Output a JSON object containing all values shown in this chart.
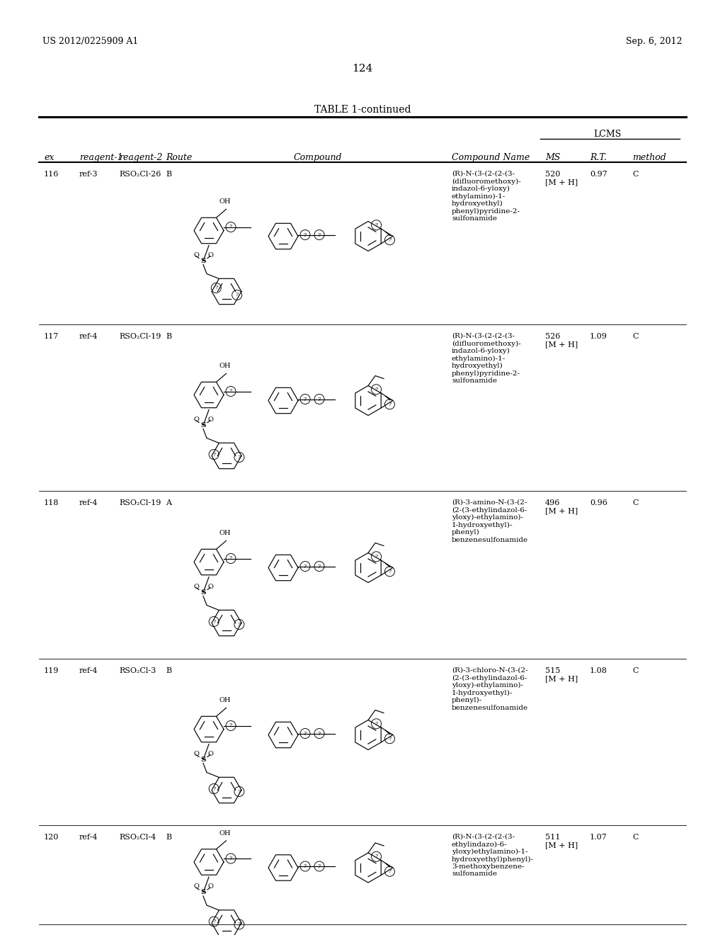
{
  "page_header_left": "US 2012/0225909 A1",
  "page_header_right": "Sep. 6, 2012",
  "page_number": "124",
  "table_title": "TABLE 1-continued",
  "lcms_header": "LCMS",
  "col_headers": [
    "ex",
    "reagent-1",
    "reagent-2",
    "Route",
    "Compound",
    "Compound Name",
    "MS",
    "R.T.",
    "method"
  ],
  "rows": [
    {
      "ex": "116",
      "reagent1": "ref-3",
      "reagent2": "RSO₂Cl-26",
      "route": "B",
      "compound_name": "(R)-N-(3-(2-(2-(3-\n(difluoromethoxy)-\nindazol-6-yloxy)\nethylamino)-1-\nhydroxyethyl)\nphenyl)pyridine-2-\nsulfonamide",
      "ms": "520\n[M + H]",
      "rt": "0.97",
      "method": "C",
      "has_ethyl": false,
      "lower_ring_type": "pyridine"
    },
    {
      "ex": "117",
      "reagent1": "ref-4",
      "reagent2": "RSO₂Cl-19",
      "route": "B",
      "compound_name": "(R)-N-(3-(2-(2-(3-\n(difluoromethoxy)-\nindazol-6-yloxy)\nethylamino)-1-\nhydroxyethyl)\nphenyl)pyridine-2-\nsulfonamide",
      "ms": "526\n[M + H]",
      "rt": "1.09",
      "method": "C",
      "has_ethyl": true,
      "lower_ring_type": "benzene_meta"
    },
    {
      "ex": "118",
      "reagent1": "ref-4",
      "reagent2": "RSO₂Cl-19",
      "route": "A",
      "compound_name": "(R)-3-amino-N-(3-(2-\n(2-(3-ethylindazol-6-\nyloxy)-ethylamino)-\n1-hydroxyethyl)-\nphenyl)\nbenzenesulfonamide",
      "ms": "496\n[M + H]",
      "rt": "0.96",
      "method": "C",
      "has_ethyl": true,
      "lower_ring_type": "benzene_meta"
    },
    {
      "ex": "119",
      "reagent1": "ref-4",
      "reagent2": "RSO₂Cl-3",
      "route": "B",
      "compound_name": "(R)-3-chloro-N-(3-(2-\n(2-(3-ethylindazol-6-\nyloxy)-ethylamino)-\n1-hydroxyethyl)-\nphenyl)-\nbenzenesulfonamide",
      "ms": "515\n[M + H]",
      "rt": "1.08",
      "method": "C",
      "has_ethyl": true,
      "lower_ring_type": "benzene_meta"
    },
    {
      "ex": "120",
      "reagent1": "ref-4",
      "reagent2": "RSO₂Cl-4",
      "route": "B",
      "compound_name": "(R)-N-(3-(2-(2-(3-\nethylindazo)-6-\nyloxy)ethylamino)-1-\nhydroxyethyl)phenyl)-\n3-methoxybenzene-\nsulfonamide",
      "ms": "511\n[M + H]",
      "rt": "1.07",
      "method": "C",
      "has_ethyl": true,
      "lower_ring_type": "benzene_meta"
    }
  ],
  "background_color": "#ffffff",
  "text_color": "#000000",
  "font_size_header": 9,
  "font_size_body": 8,
  "font_size_page_header": 9,
  "font_size_table_title": 10
}
